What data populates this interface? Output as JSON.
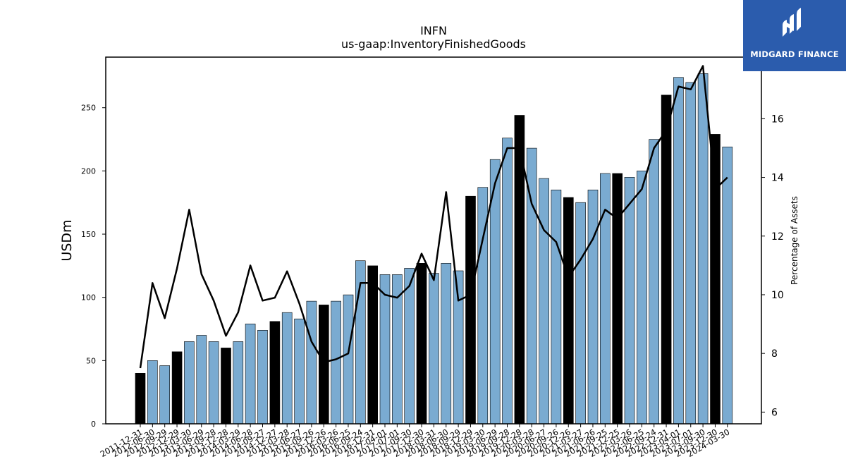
{
  "chart_data": {
    "type": "bar",
    "title": "INFN",
    "subtitle": "us-gaap:InventoryFinishedGoods",
    "ylabel": "USDm",
    "y2label": "Percentage of Assets",
    "ylim": [
      0,
      290
    ],
    "y2lim": [
      5.6,
      18.1
    ],
    "yticks": [
      0,
      50,
      100,
      150,
      200,
      250
    ],
    "y2ticks": [
      6,
      8,
      10,
      12,
      14,
      16
    ],
    "grid": false,
    "categories": [
      "2011-12-31",
      "2012-06-30",
      "2012-09-29",
      "2012-12-29",
      "2013-03-30",
      "2013-06-29",
      "2013-09-28",
      "2013-12-28",
      "2014-03-29",
      "2014-06-28",
      "2014-09-27",
      "2014-12-27",
      "2015-03-28",
      "2015-06-27",
      "2015-09-26",
      "2015-12-26",
      "2016-03-26",
      "2016-06-25",
      "2016-09-24",
      "2016-12-31",
      "2017-04-01",
      "2017-07-01",
      "2017-09-30",
      "2017-12-30",
      "2018-03-31",
      "2018-06-30",
      "2018-09-29",
      "2018-12-29",
      "2019-03-30",
      "2019-06-29",
      "2019-09-28",
      "2019-12-28",
      "2020-03-28",
      "2020-06-27",
      "2020-09-26",
      "2020-12-26",
      "2021-03-27",
      "2021-06-26",
      "2021-09-25",
      "2021-12-25",
      "2022-03-26",
      "2022-06-25",
      "2022-09-24",
      "2022-12-31",
      "2023-04-01",
      "2023-07-01",
      "2023-09-30",
      "2023-12-30",
      "2024-03-30"
    ],
    "series": [
      {
        "type": "bar",
        "values": [
          40,
          50,
          46,
          57,
          65,
          70,
          65,
          60,
          65,
          79,
          74,
          81,
          88,
          83,
          97,
          94,
          97,
          102,
          129,
          125,
          118,
          118,
          123,
          127,
          119,
          127,
          121,
          180,
          187,
          209,
          226,
          244,
          218,
          194,
          185,
          179,
          175,
          185,
          198,
          198,
          195,
          200,
          225,
          260,
          274,
          270,
          277,
          229,
          219
        ],
        "highlight": [
          true,
          false,
          false,
          true,
          false,
          false,
          false,
          true,
          false,
          false,
          false,
          true,
          false,
          false,
          false,
          true,
          false,
          false,
          false,
          true,
          false,
          false,
          false,
          true,
          false,
          false,
          false,
          true,
          false,
          false,
          false,
          true,
          false,
          false,
          false,
          true,
          false,
          false,
          false,
          true,
          false,
          false,
          false,
          true,
          false,
          false,
          false,
          true,
          false
        ],
        "colors": {
          "normal": "#7aabd1",
          "highlight": "#000000"
        }
      },
      {
        "type": "line",
        "axis": "right",
        "color": "#000000",
        "values": [
          7.5,
          10.4,
          9.2,
          10.9,
          12.9,
          10.7,
          9.8,
          8.6,
          9.4,
          11.0,
          9.8,
          9.9,
          10.8,
          9.7,
          8.4,
          7.7,
          7.8,
          8.0,
          10.4,
          10.4,
          10.0,
          9.9,
          10.3,
          11.4,
          10.5,
          13.5,
          9.8,
          10.0,
          11.9,
          13.8,
          15.0,
          15.0,
          13.1,
          12.2,
          11.8,
          10.6,
          11.2,
          11.9,
          12.9,
          12.6,
          13.1,
          13.6,
          15.0,
          15.6,
          17.1,
          17.0,
          17.8,
          13.6,
          14.0
        ]
      }
    ]
  },
  "logo": {
    "text": "MIDGARD FINANCE"
  }
}
